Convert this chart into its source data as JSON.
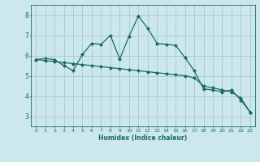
{
  "xlabel": "Humidex (Indice chaleur)",
  "ylabel": "",
  "background_color": "#cce8ec",
  "grid_color": "#aacdd4",
  "line_color": "#1a6b5e",
  "xlim": [
    -0.5,
    23.5
  ],
  "ylim": [
    2.5,
    8.5
  ],
  "xticks": [
    0,
    1,
    2,
    3,
    4,
    5,
    6,
    7,
    8,
    9,
    10,
    11,
    12,
    13,
    14,
    15,
    16,
    17,
    18,
    19,
    20,
    21,
    22,
    23
  ],
  "yticks": [
    3,
    4,
    5,
    6,
    7,
    8
  ],
  "curve1_x": [
    0,
    1,
    2,
    3,
    4,
    5,
    6,
    7,
    8,
    9,
    10,
    11,
    12,
    13,
    14,
    15,
    16,
    17,
    18,
    19,
    20,
    21,
    22,
    23
  ],
  "curve1_y": [
    5.8,
    5.85,
    5.8,
    5.5,
    5.25,
    6.05,
    6.6,
    6.55,
    7.0,
    5.82,
    6.95,
    7.95,
    7.35,
    6.6,
    6.55,
    6.5,
    5.9,
    5.25,
    4.35,
    4.3,
    4.2,
    4.3,
    3.8,
    3.2
  ],
  "curve2_x": [
    0,
    1,
    2,
    3,
    4,
    5,
    6,
    7,
    8,
    9,
    10,
    11,
    12,
    13,
    14,
    15,
    16,
    17,
    18,
    19,
    20,
    21,
    22,
    23
  ],
  "curve2_y": [
    5.8,
    5.75,
    5.7,
    5.65,
    5.6,
    5.55,
    5.5,
    5.45,
    5.4,
    5.35,
    5.3,
    5.25,
    5.2,
    5.15,
    5.1,
    5.05,
    5.0,
    4.9,
    4.5,
    4.4,
    4.3,
    4.2,
    3.9,
    3.2
  ]
}
